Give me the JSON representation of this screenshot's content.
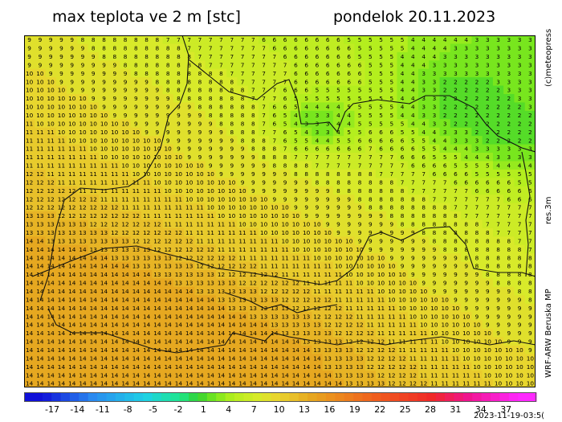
{
  "title": {
    "left": "max teplota ve 2 m [stc]",
    "right": "pondelok 20.11.2023"
  },
  "side_labels": {
    "top": "(c)meteopress",
    "middle": "res.3m",
    "bottom": "WRF-ARW Beruska MP"
  },
  "timestamp": "2023-11-19-03:5(",
  "colorbar": {
    "tick_labels": [
      "-17",
      "-14",
      "-11",
      "-8",
      "-5",
      "-2",
      "1",
      "4",
      "7",
      "10",
      "13",
      "16",
      "19",
      "22",
      "25",
      "28",
      "31",
      "34",
      "37"
    ]
  },
  "map_data": {
    "rows": 42,
    "cols": 48,
    "text_color": "#000000",
    "border_color": "#111111"
  }
}
